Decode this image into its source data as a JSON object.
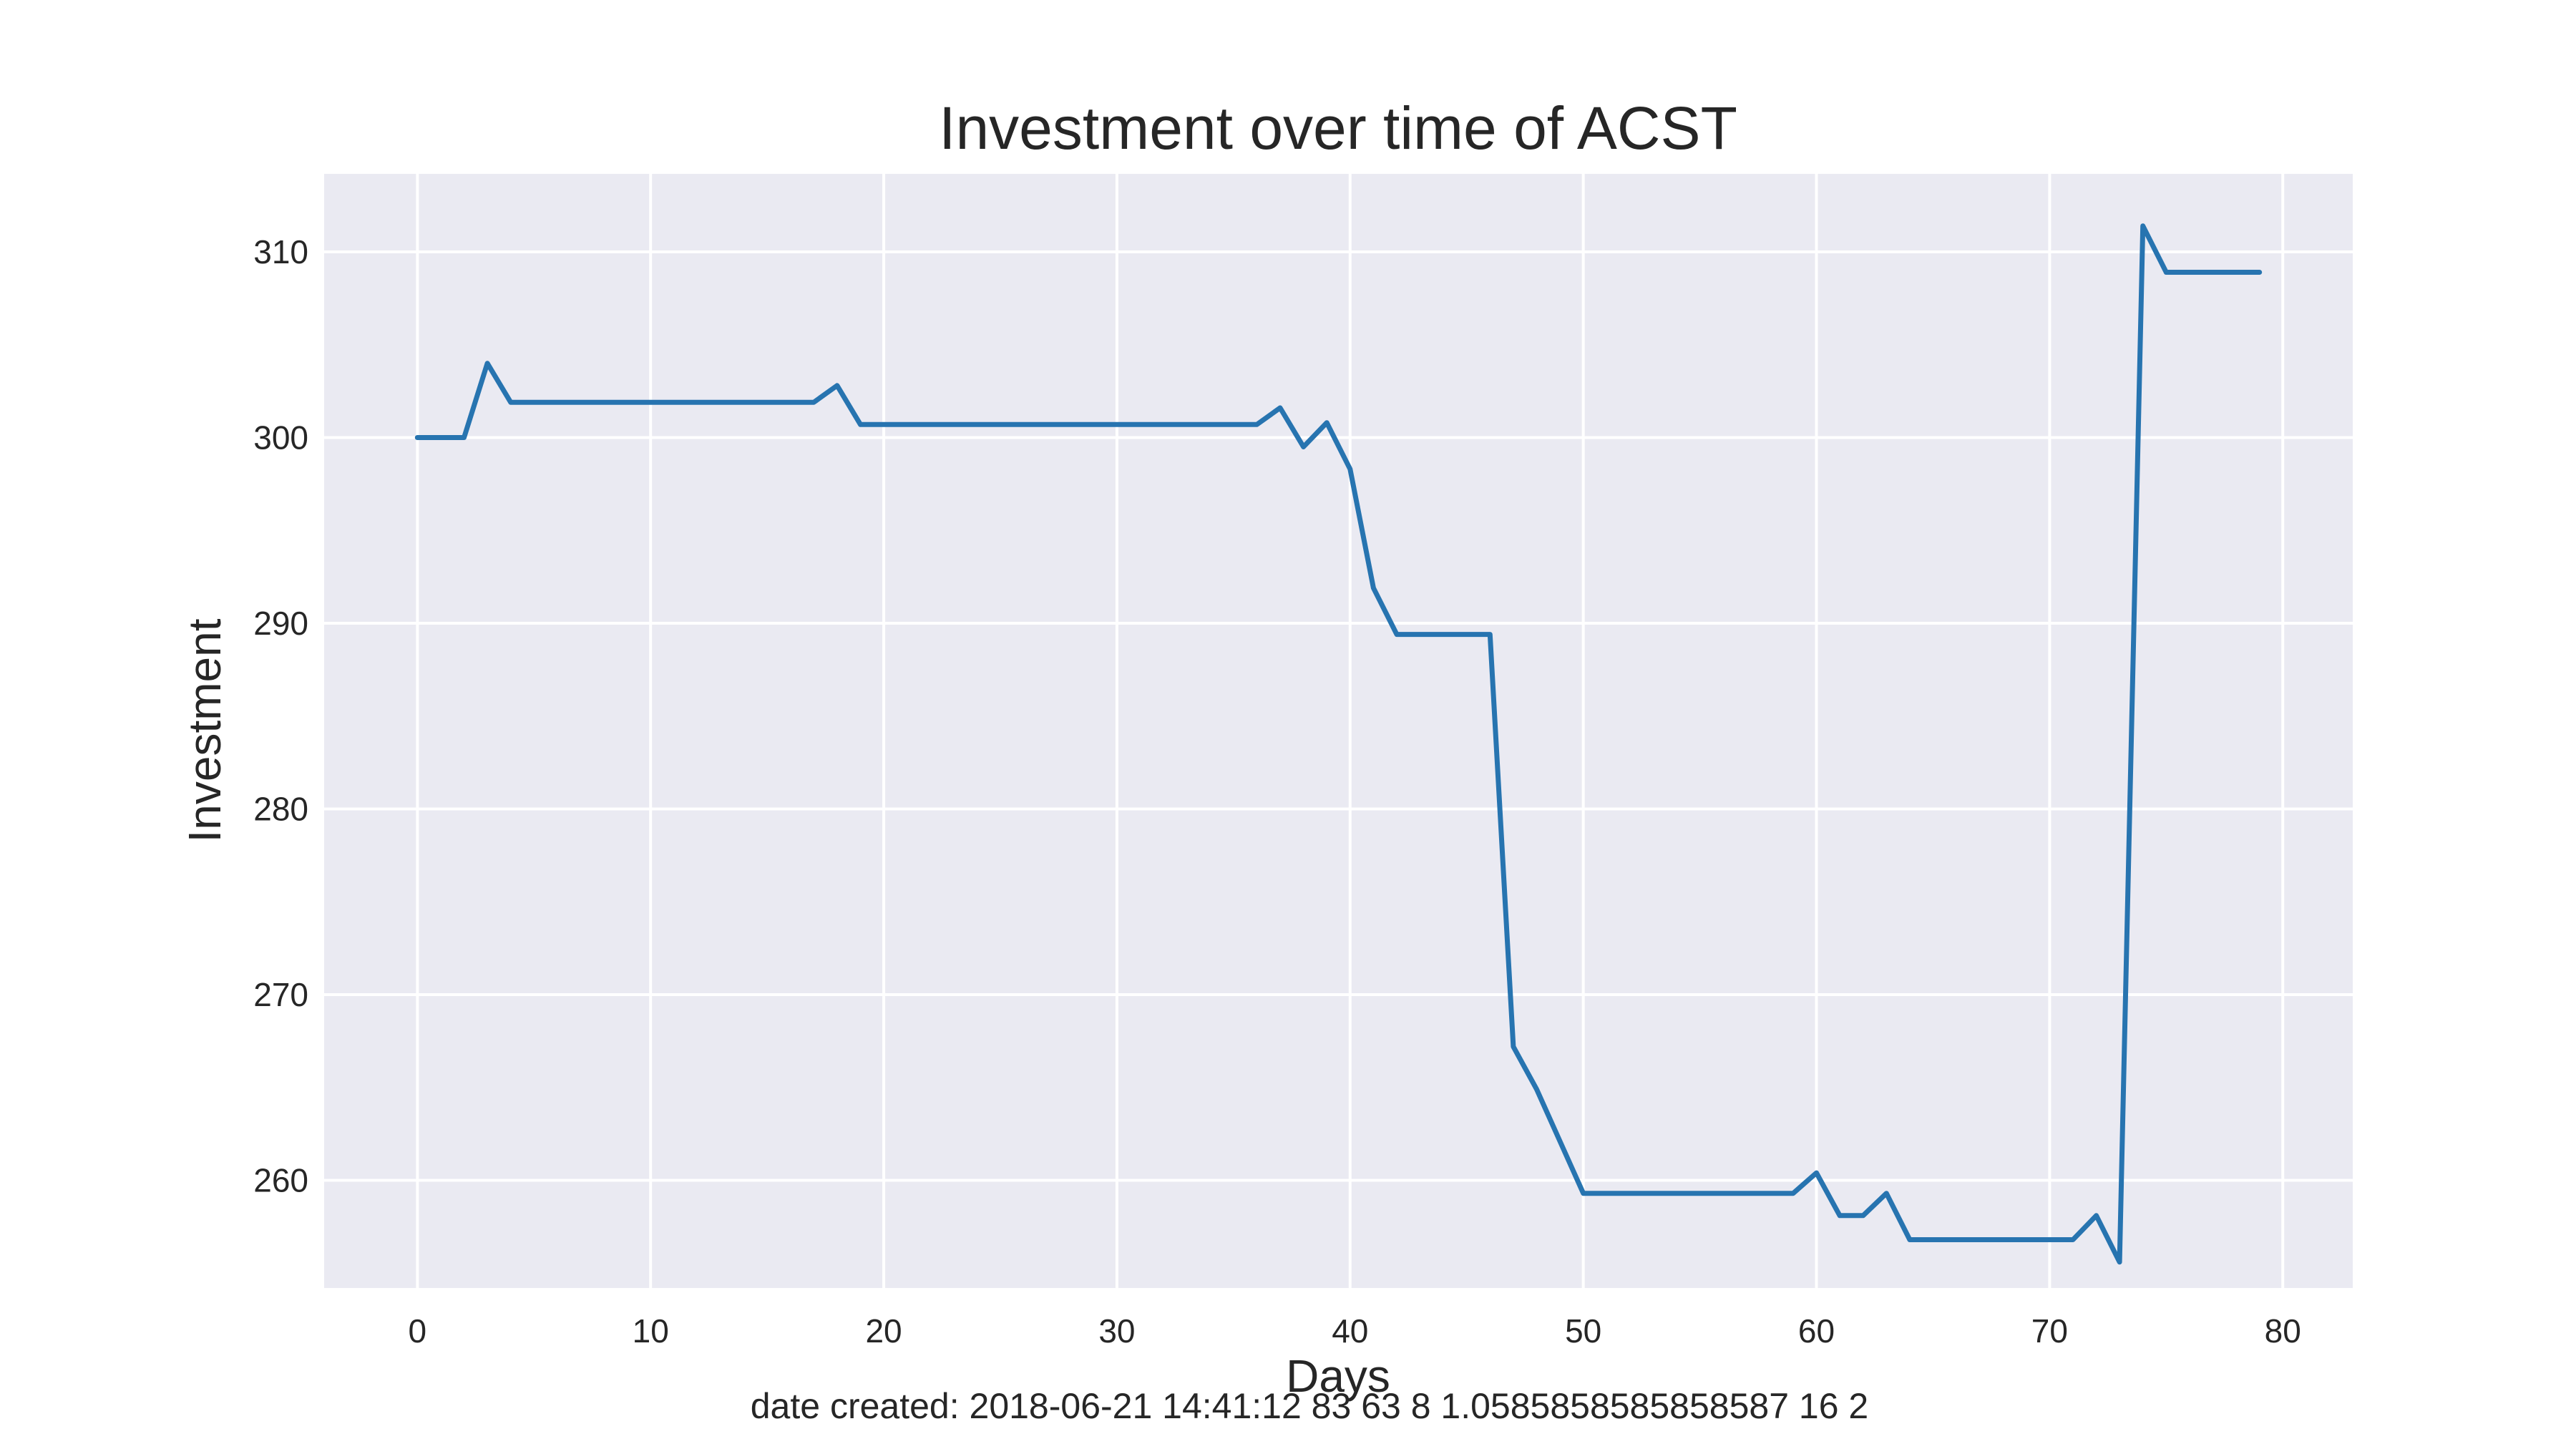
{
  "chart_data": {
    "type": "line",
    "title": "Investment over time of ACST",
    "xlabel": "Days",
    "ylabel": "Investment",
    "xlim": [
      -4,
      83
    ],
    "ylim": [
      254.2,
      314.2
    ],
    "xticks": [
      0,
      10,
      20,
      30,
      40,
      50,
      60,
      70,
      80
    ],
    "yticks": [
      260,
      270,
      280,
      290,
      300,
      310
    ],
    "grid": true,
    "background": "#eaeaf2",
    "gridColor": "#ffffff",
    "series": [
      {
        "color": "#2774b0",
        "x": [
          0,
          1,
          2,
          3,
          4,
          5,
          6,
          7,
          8,
          9,
          10,
          11,
          12,
          13,
          14,
          15,
          16,
          17,
          18,
          19,
          20,
          21,
          22,
          23,
          24,
          25,
          26,
          27,
          28,
          29,
          30,
          31,
          32,
          33,
          34,
          35,
          36,
          37,
          38,
          39,
          40,
          41,
          42,
          43,
          44,
          45,
          46,
          47,
          48,
          49,
          50,
          51,
          52,
          53,
          54,
          55,
          56,
          57,
          58,
          59,
          60,
          61,
          62,
          63,
          64,
          65,
          66,
          67,
          68,
          69,
          70,
          71,
          72,
          73,
          74,
          75,
          76,
          77,
          78,
          79
        ],
        "y": [
          300.0,
          300.0,
          300.0,
          304.0,
          301.9,
          301.9,
          301.9,
          301.9,
          301.9,
          301.9,
          301.9,
          301.9,
          301.9,
          301.9,
          301.9,
          301.9,
          301.9,
          301.9,
          302.8,
          300.7,
          300.7,
          300.7,
          300.7,
          300.7,
          300.7,
          300.7,
          300.7,
          300.7,
          300.7,
          300.7,
          300.7,
          300.7,
          300.7,
          300.7,
          300.7,
          300.7,
          300.7,
          301.6,
          299.5,
          300.8,
          298.3,
          291.9,
          289.4,
          289.4,
          289.4,
          289.4,
          289.4,
          267.2,
          264.9,
          262.1,
          259.3,
          259.3,
          259.3,
          259.3,
          259.3,
          259.3,
          259.3,
          259.3,
          259.3,
          259.3,
          260.4,
          258.1,
          258.1,
          259.3,
          256.8,
          256.8,
          256.8,
          256.8,
          256.8,
          256.8,
          256.8,
          256.8,
          258.1,
          255.6,
          311.4,
          308.9,
          308.9,
          308.9,
          308.9,
          308.9
        ]
      }
    ]
  },
  "footer": {
    "text": "date created: 2018-06-21 14:41:12 83 63 8 1.0585858585858587 16 2"
  }
}
